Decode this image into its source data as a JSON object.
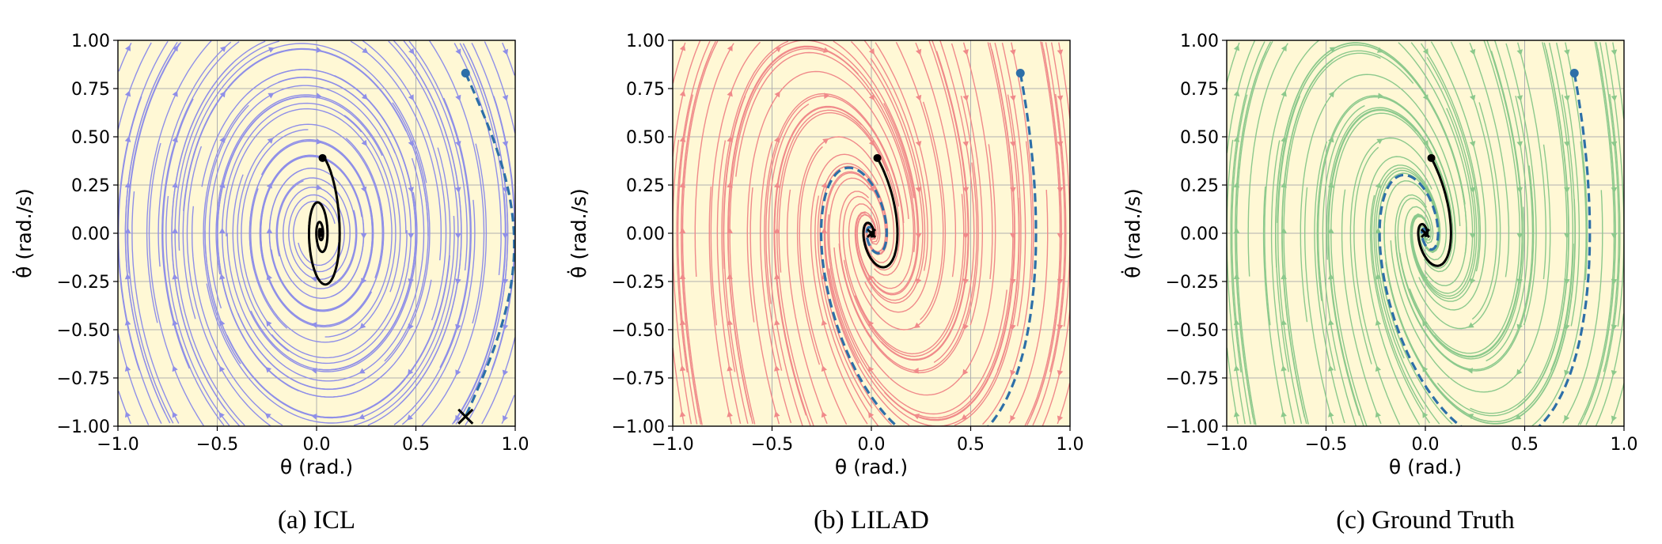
{
  "chart_data": [
    {
      "type": "streamplot",
      "caption": "(a) ICL",
      "xlabel": "θ (rad.)",
      "ylabel": "θ̇ (rad./s)",
      "xlim": [
        -1.0,
        1.0
      ],
      "ylim": [
        -1.0,
        1.0
      ],
      "xticks": [
        "−1.0",
        "−0.5",
        "0.0",
        "0.5",
        "1.0"
      ],
      "yticks": [
        "1.00",
        "0.75",
        "0.50",
        "0.25",
        "0.00",
        "−0.25",
        "−0.50",
        "−0.75",
        "−1.00"
      ],
      "grid": true,
      "background": "#fff8d5",
      "stream_color": "#8f8fe8",
      "field": {
        "a": 0.0,
        "b": 1.0,
        "c": -2.4,
        "d": -0.18
      },
      "dashed_trajectory": {
        "start": [
          0.75,
          0.83
        ],
        "end": [
          0.75,
          -0.95
        ],
        "color": "#2d6fa8"
      },
      "solid_trajectory": {
        "start": [
          0.03,
          0.39
        ],
        "end": [
          0.02,
          -0.02
        ],
        "color": "#000000"
      },
      "end_marker": {
        "type": "x",
        "at": [
          0.75,
          -0.95
        ]
      }
    },
    {
      "type": "streamplot",
      "caption": "(b) LILAD",
      "xlabel": "θ (rad.)",
      "ylabel": "θ̇ (rad./s)",
      "xlim": [
        -1.0,
        1.0
      ],
      "ylim": [
        -1.0,
        1.0
      ],
      "xticks": [
        "−1.0",
        "−0.5",
        "0.0",
        "0.5",
        "1.0"
      ],
      "yticks": [
        "1.00",
        "0.75",
        "0.50",
        "0.25",
        "0.00",
        "−0.25",
        "−0.50",
        "−0.75",
        "−1.00"
      ],
      "grid": true,
      "background": "#fff8d5",
      "stream_color": "#f08a8a",
      "field": {
        "a": 0.0,
        "b": 1.0,
        "c": -4.5,
        "d": -1.5
      },
      "dashed_trajectory": {
        "start": [
          0.75,
          0.83
        ],
        "end": [
          0.0,
          0.0
        ],
        "color": "#2d6fa8"
      },
      "solid_trajectory": {
        "start": [
          0.03,
          0.39
        ],
        "end": [
          0.0,
          0.0
        ],
        "color": "#000000"
      },
      "end_marker": {
        "type": "x",
        "at": [
          0.0,
          0.0
        ]
      }
    },
    {
      "type": "streamplot",
      "caption": "(c) Ground Truth",
      "xlabel": "θ (rad.)",
      "ylabel": "θ̇ (rad./s)",
      "xlim": [
        -1.0,
        1.0
      ],
      "ylim": [
        -1.0,
        1.0
      ],
      "xticks": [
        "−1.0",
        "−0.5",
        "0.0",
        "0.5",
        "1.0"
      ],
      "yticks": [
        "1.00",
        "0.75",
        "0.50",
        "0.25",
        "0.00",
        "−0.25",
        "−0.50",
        "−0.75",
        "−1.00"
      ],
      "grid": true,
      "background": "#fff8d5",
      "stream_color": "#8cc98c",
      "field": {
        "a": 0.0,
        "b": 1.0,
        "c": -4.5,
        "d": -1.6
      },
      "dashed_trajectory": {
        "start": [
          0.75,
          0.83
        ],
        "end": [
          0.0,
          0.0
        ],
        "color": "#2d6fa8"
      },
      "solid_trajectory": {
        "start": [
          0.03,
          0.39
        ],
        "end": [
          0.0,
          0.0
        ],
        "color": "#000000"
      },
      "end_marker": {
        "type": "x",
        "at": [
          0.0,
          0.0
        ]
      }
    }
  ]
}
